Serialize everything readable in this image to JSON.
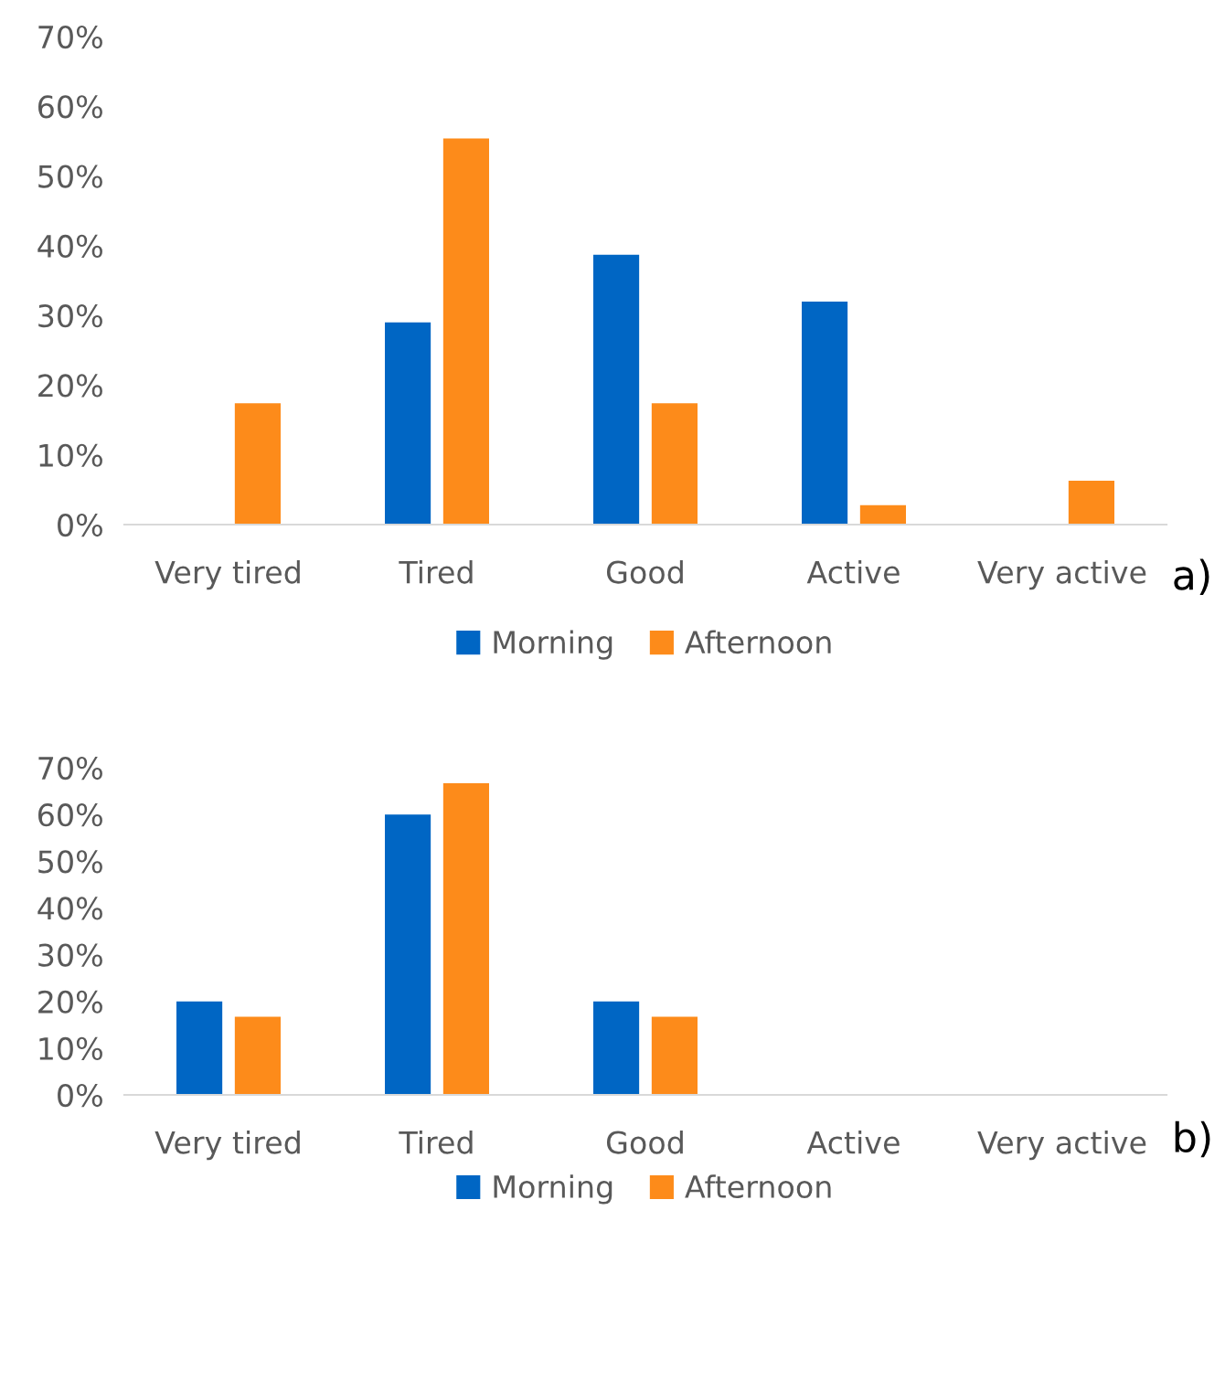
{
  "chart_data": [
    {
      "type": "bar",
      "categories": [
        "Very tired",
        "Tired",
        "Good",
        "Active",
        "Very active"
      ],
      "series": [
        {
          "name": "Morning",
          "color": "#0066c4",
          "values": [
            0,
            29,
            38.7,
            32,
            0
          ]
        },
        {
          "name": "Afternoon",
          "color": "#fd8b1a",
          "values": [
            17.4,
            55.4,
            17.4,
            2.8,
            6.3
          ]
        }
      ],
      "ylim": [
        0,
        70
      ],
      "yticks": [
        {
          "value": 0,
          "label": "0%"
        },
        {
          "value": 10,
          "label": "10%"
        },
        {
          "value": 20,
          "label": "20%"
        },
        {
          "value": 30,
          "label": "30%"
        },
        {
          "value": 40,
          "label": "40%"
        },
        {
          "value": 50,
          "label": "50%"
        },
        {
          "value": 60,
          "label": "60%"
        },
        {
          "value": 70,
          "label": "70%"
        }
      ],
      "legend": "bottom",
      "annotations": [
        "a)"
      ]
    },
    {
      "type": "bar",
      "categories": [
        "Very tired",
        "Tired",
        "Good",
        "Active",
        "Very active"
      ],
      "series": [
        {
          "name": "Morning",
          "color": "#0066c4",
          "values": [
            20,
            60,
            20,
            0,
            0
          ]
        },
        {
          "name": "Afternoon",
          "color": "#fd8b1a",
          "values": [
            16.7,
            66.7,
            16.7,
            0,
            0
          ]
        }
      ],
      "ylim": [
        0,
        70
      ],
      "yticks": [
        {
          "value": 0,
          "label": "0%"
        },
        {
          "value": 10,
          "label": "10%"
        },
        {
          "value": 20,
          "label": "20%"
        },
        {
          "value": 30,
          "label": "30%"
        },
        {
          "value": 40,
          "label": "40%"
        },
        {
          "value": 50,
          "label": "50%"
        },
        {
          "value": 60,
          "label": "60%"
        },
        {
          "value": 70,
          "label": "70%"
        }
      ],
      "legend": "bottom",
      "annotations": [
        "b)"
      ]
    }
  ]
}
